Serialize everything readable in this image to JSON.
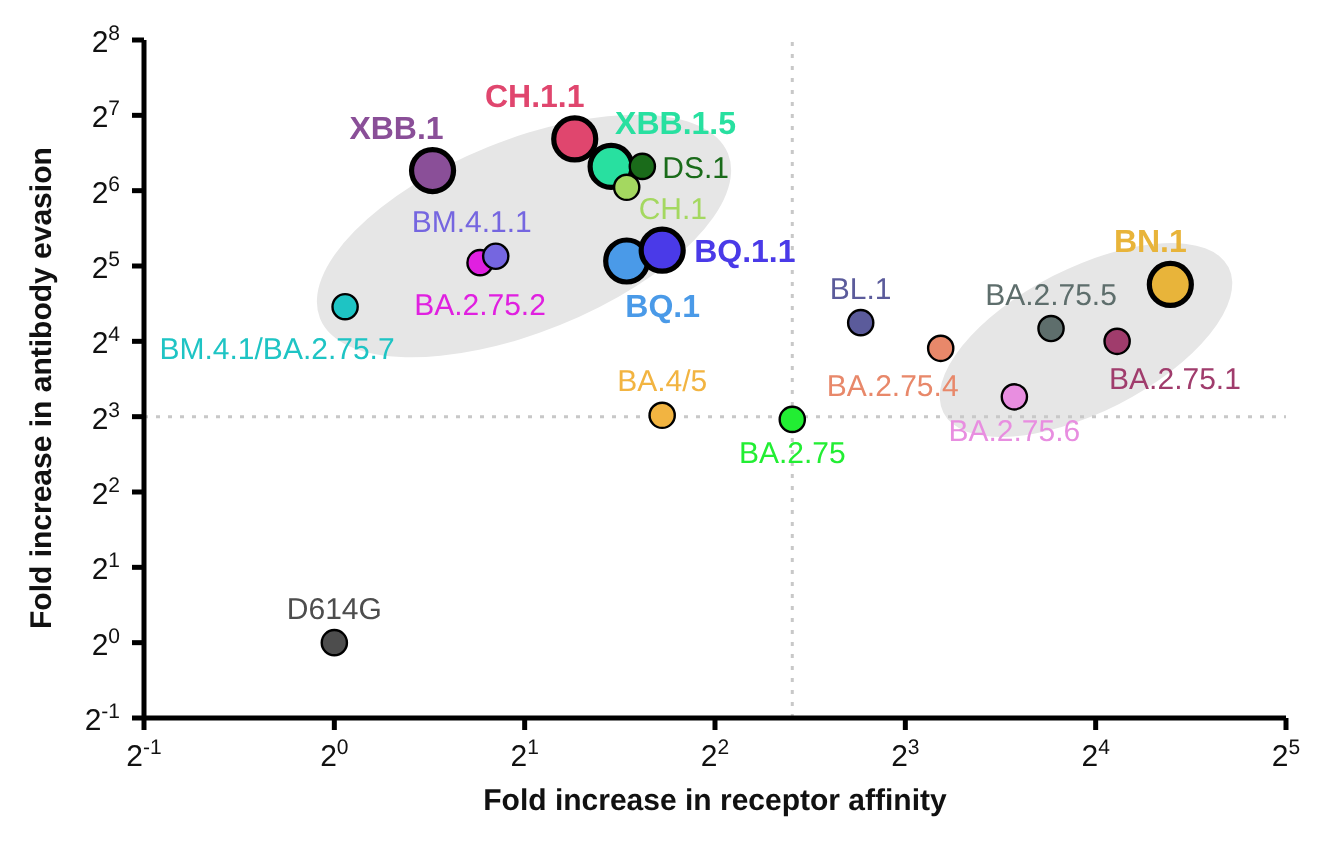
{
  "chart_data": {
    "type": "bubble",
    "xlabel": "Fold increase in receptor affinity",
    "ylabel": "Fold increase in antibody evasion",
    "log": "xy",
    "marker": "circle",
    "xlim": [
      0.5,
      32
    ],
    "ylim": [
      0.5,
      256
    ],
    "xticks": [
      {
        "value": 0.5,
        "label": "2$^{-1}$"
      },
      {
        "value": 1,
        "label": "2$^{0}$"
      },
      {
        "value": 2,
        "label": "2$^{1}$"
      },
      {
        "value": 4,
        "label": "2$^{2}$"
      },
      {
        "value": 8,
        "label": "2$^{3}$"
      },
      {
        "value": 16,
        "label": "2$^{4}$"
      },
      {
        "value": 32,
        "label": "2$^{5}$"
      }
    ],
    "yticks": [
      {
        "value": 0.5,
        "label": "2$^{-1}$"
      },
      {
        "value": 1,
        "label": "2$^{0}$"
      },
      {
        "value": 2,
        "label": "2$^{1}$"
      },
      {
        "value": 4,
        "label": "2$^{2}$"
      },
      {
        "value": 8,
        "label": "2$^{3}$"
      },
      {
        "value": 16,
        "label": "2$^{4}$"
      },
      {
        "value": 32,
        "label": "2$^{5}$"
      },
      {
        "value": 64,
        "label": "2$^{6}$"
      },
      {
        "value": 128,
        "label": "2$^{7}$"
      },
      {
        "value": 256,
        "label": "2$^{8}$"
      }
    ],
    "ref_lines": [
      {
        "axis": "y",
        "value": 8,
        "color": "#c8c8c8",
        "line_style": "dotted"
      },
      {
        "axis": "x",
        "value": 5.3,
        "color": "#c8c8c8",
        "line_style": "dotted"
      }
    ],
    "series": [
      {
        "name": "D614G",
        "color": "#4d4d4d",
        "x": [
          1
        ],
        "values": [
          1
        ],
        "sizes": [
          0.36
        ]
      },
      {
        "name": "BA.4/5",
        "color": "#f2b441",
        "x": [
          3.3
        ],
        "values": [
          8.1
        ],
        "sizes": [
          0.36
        ]
      },
      {
        "name": "BA.2.75",
        "color": "#22ee33",
        "x": [
          5.3
        ],
        "values": [
          7.8
        ],
        "sizes": [
          0.36
        ]
      },
      {
        "name": "BL.1",
        "color": "#5b5b9b",
        "x": [
          6.8
        ],
        "values": [
          19
        ],
        "sizes": [
          0.36
        ]
      },
      {
        "name": "BA.2.75.4",
        "color": "#e8886a",
        "x": [
          9.1
        ],
        "values": [
          15
        ],
        "sizes": [
          0.36
        ]
      },
      {
        "name": "BA.2.75.6",
        "color": "#e88ee0",
        "x": [
          11.9
        ],
        "values": [
          9.6
        ],
        "sizes": [
          0.36
        ]
      },
      {
        "name": "BA.2.75.5",
        "color": "#5e6e6c",
        "x": [
          13.6
        ],
        "values": [
          18
        ],
        "sizes": [
          0.36
        ]
      },
      {
        "name": "BA.2.75.1",
        "color": "#a03c6c",
        "x": [
          17.3
        ],
        "values": [
          16
        ],
        "sizes": [
          0.36
        ]
      },
      {
        "name": "BN.1",
        "color": "#e8b43a",
        "x": [
          21
        ],
        "values": [
          27
        ],
        "sizes": [
          1
        ]
      },
      {
        "name": "BM.4.1/BA.2.75.7",
        "color": "#1ec4c4",
        "x": [
          1.04
        ],
        "values": [
          22
        ],
        "sizes": [
          0.36
        ]
      },
      {
        "name": "BA.2.75.2",
        "color": "#e020e0",
        "x": [
          1.7
        ],
        "values": [
          33
        ],
        "sizes": [
          0.36
        ]
      },
      {
        "name": "BM.4.1.1",
        "color": "#7566e0",
        "x": [
          1.8
        ],
        "values": [
          35
        ],
        "sizes": [
          0.36
        ]
      },
      {
        "name": "XBB.1",
        "color": "#8a4f98",
        "x": [
          1.43
        ],
        "values": [
          77
        ],
        "sizes": [
          1
        ]
      },
      {
        "name": "CH.1.1",
        "color": "#e0466e",
        "x": [
          2.4
        ],
        "values": [
          103
        ],
        "sizes": [
          1
        ]
      },
      {
        "name": "XBB.1.5",
        "color": "#28e0a0",
        "x": [
          2.74
        ],
        "values": [
          80
        ],
        "sizes": [
          1
        ]
      },
      {
        "name": "DS.1",
        "color": "#1a6b1a",
        "x": [
          3.07
        ],
        "values": [
          80
        ],
        "sizes": [
          0.36
        ]
      },
      {
        "name": "CH.1",
        "color": "#a4d860",
        "x": [
          2.9
        ],
        "values": [
          66
        ],
        "sizes": [
          0.36
        ]
      },
      {
        "name": "BQ.1",
        "color": "#4a9ae8",
        "x": [
          2.9
        ],
        "values": [
          33.5
        ],
        "sizes": [
          1
        ]
      },
      {
        "name": "BQ.1.1",
        "color": "#4a3ae8",
        "x": [
          3.3
        ],
        "values": [
          37
        ],
        "sizes": [
          1
        ]
      }
    ]
  }
}
